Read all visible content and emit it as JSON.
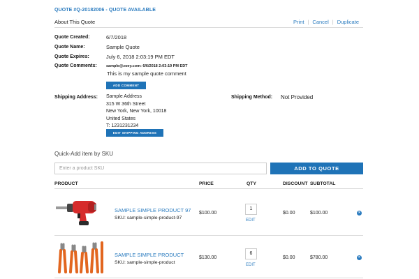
{
  "quote": {
    "title": "QUOTE #Q-20182006 - QUOTE AVAILABLE",
    "about": "About This Quote",
    "actions": {
      "print": "Print",
      "cancel": "Cancel",
      "duplicate": "Duplicate"
    }
  },
  "details": {
    "created_label": "Quote Created:",
    "created_value": "6/7/2018",
    "name_label": "Quote Name:",
    "name_value": "Sample Quote",
    "expires_label": "Quote Expires:",
    "expires_value": "July 6, 2018 2:03:19 PM EDT",
    "comments_label": "Quote Comments:",
    "comment_meta": "sample@zoey.com: 6/6/2018 2:03:19 PM EDT",
    "comment_text": "This is my sample quote comment",
    "add_comment_label": "ADD COMMENT"
  },
  "shipping": {
    "address_label": "Shipping Address:",
    "address_lines": [
      "Sample Address",
      "315 W 36th Street",
      "New York, New York, 10018",
      "United States",
      "T: 1231231234"
    ],
    "edit_label": "EDIT SHIPPING ADDRESS",
    "method_label": "Shipping Method:",
    "method_value": "Not Provided"
  },
  "quick_add": {
    "label": "Quick-Add item by SKU",
    "placeholder": "Enter a product SKU",
    "button_label": "ADD TO QUOTE"
  },
  "table": {
    "headers": {
      "product": "PRODUCT",
      "price": "PRICE",
      "qty": "QTY",
      "discount": "DISCOUNT",
      "subtotal": "SUBTOTAL"
    },
    "rows": [
      {
        "image": "drill-image",
        "name": "SAMPLE SIMPLE PRODUCT 97",
        "sku": "SKU: sample-simple-product-97",
        "price": "$100.00",
        "qty": "1",
        "edit": "EDIT",
        "discount": "$0.00",
        "subtotal": "$100.00",
        "remove_icon": "remove-icon"
      },
      {
        "image": "pliers-image",
        "name": "SAMPLE SIMPLE PRODUCT",
        "sku": "SKU: sample-simple-product",
        "price": "$130.00",
        "qty": "6",
        "edit": "EDIT",
        "discount": "$0.00",
        "subtotal": "$780.00",
        "remove_icon": "remove-icon"
      }
    ]
  },
  "colors": {
    "accent": "#1f73b7",
    "link": "#2a7bbf",
    "drill_red": "#d62b2b",
    "pliers_orange": "#e2661f"
  }
}
